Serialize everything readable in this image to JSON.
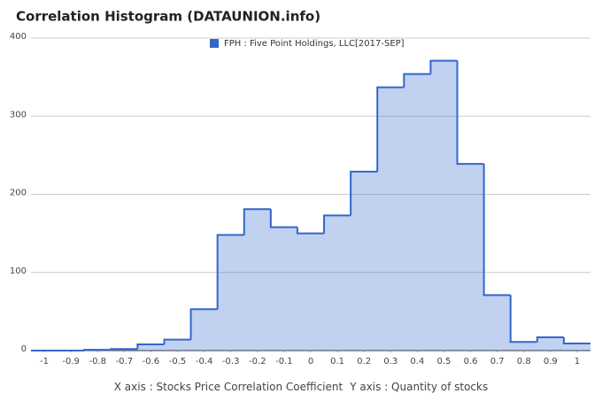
{
  "chart_data": {
    "type": "histogram",
    "title": "Correlation Histogram (DATAUNION.info)",
    "x_label": "X axis : Stocks Price Correlation Coefficient",
    "y_label": "Y axis : Quantity of stocks",
    "bins": [
      -1.05,
      -0.95,
      -0.85,
      -0.75,
      -0.65,
      -0.55,
      -0.45,
      -0.35,
      -0.25,
      -0.15,
      -0.05,
      0.05,
      0.15,
      0.25,
      0.35,
      0.45,
      0.55,
      0.65,
      0.75,
      0.85,
      0.95,
      1.05
    ],
    "series": [
      {
        "name": "FPH : Five Point Holdings, LLC[2017-SEP]",
        "color": "#3366cc",
        "values": [
          0,
          0,
          1,
          2,
          8,
          14,
          53,
          148,
          181,
          158,
          150,
          173,
          229,
          337,
          354,
          371,
          239,
          71,
          11,
          17,
          9
        ]
      }
    ],
    "xlim": [
      -1.05,
      1.05
    ],
    "ylim": [
      0,
      400
    ],
    "xticks": [
      -1,
      -0.9,
      -0.8,
      -0.7,
      -0.6,
      -0.5,
      -0.4,
      -0.3,
      -0.2,
      -0.1,
      0,
      0.1,
      0.2,
      0.3,
      0.4,
      0.5,
      0.6,
      0.7,
      0.8,
      0.9,
      1
    ],
    "yticks": [
      0,
      100,
      200,
      300,
      400
    ],
    "grid": true,
    "legend": "top"
  }
}
